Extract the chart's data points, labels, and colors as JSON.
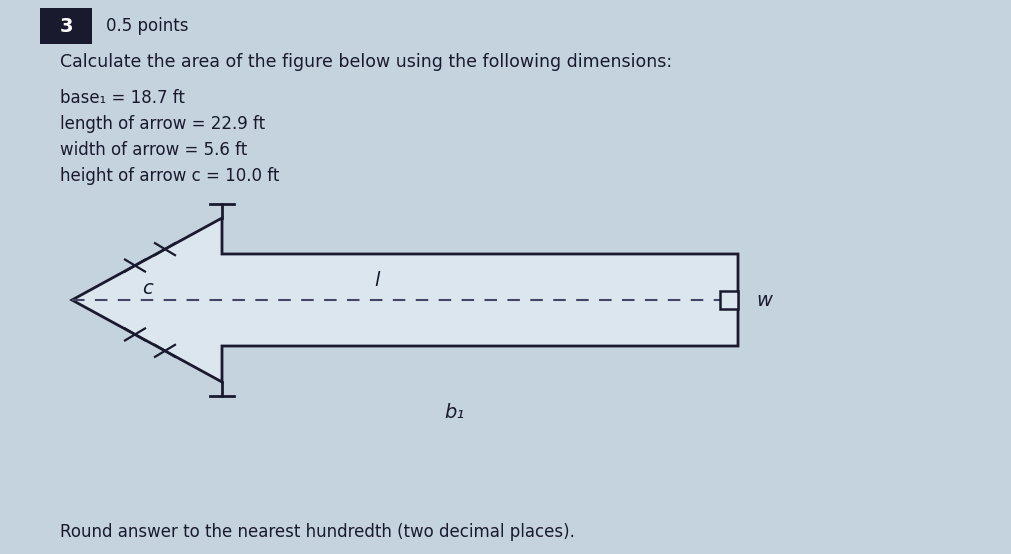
{
  "title_num": "3",
  "points": "0.5 points",
  "question": "Calculate the area of the figure below using the following dimensions:",
  "base1_label": "base₁ = 18.7 ft",
  "length_label": "length of arrow = 22.9 ft",
  "width_label": "width of arrow = 5.6 ft",
  "height_label": "height of arrow c = 10.0 ft",
  "round_note": "Round answer to the nearest hundredth (two decimal places).",
  "bg_color": "#c5d3de",
  "text_color": "#1a1a2e",
  "arrow_fill": "#dce6ef",
  "arrow_edge": "#1a1a2e",
  "label_c": "c",
  "label_l": "l",
  "label_w": "w",
  "label_b1": "b₁",
  "badge_color": "#1a1a2e",
  "badge_text": "white"
}
